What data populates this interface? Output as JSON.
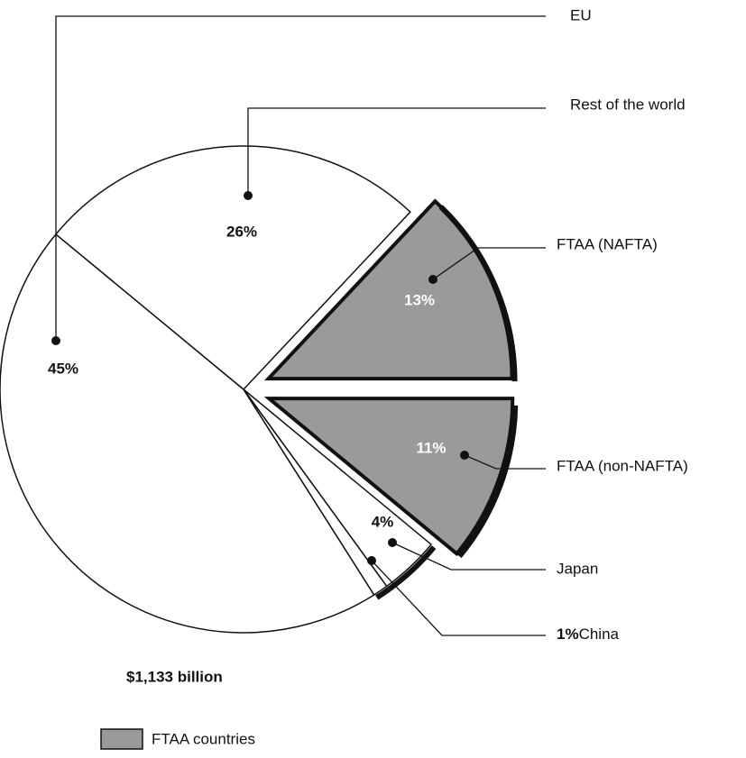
{
  "chart_data": {
    "type": "pie",
    "categories": [
      "EU",
      "Rest of the world",
      "FTAA (NAFTA)",
      "FTAA (non-NAFTA)",
      "Japan",
      "China"
    ],
    "values": [
      45,
      26,
      13,
      11,
      4,
      1
    ],
    "value_labels": [
      "45%",
      "26%",
      "13%",
      "11%",
      "4%",
      "1%"
    ],
    "colors": [
      "#ffffff",
      "#ffffff",
      "#9a9a9a",
      "#9a9a9a",
      "#ffffff",
      "#ffffff"
    ],
    "exploded": [
      false,
      false,
      true,
      true,
      false,
      false
    ],
    "total": "$1,133 billion",
    "legend": {
      "name": "FTAA countries",
      "color": "#9a9a9a"
    }
  }
}
